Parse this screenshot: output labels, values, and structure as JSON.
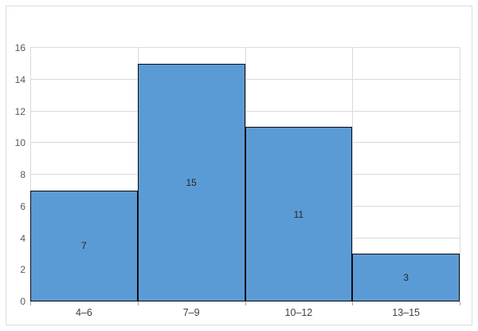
{
  "chart_data": {
    "type": "bar",
    "subtype": "histogram",
    "title": "",
    "xlabel": "",
    "ylabel": "",
    "categories": [
      "4–6",
      "7–9",
      "10–12",
      "13–15"
    ],
    "values": [
      7,
      15,
      11,
      3
    ],
    "data_labels": [
      "7",
      "15",
      "11",
      "3"
    ],
    "ylim": [
      0,
      16
    ],
    "ytick_step": 2,
    "ytick_labels": [
      "0",
      "2",
      "4",
      "6",
      "8",
      "10",
      "12",
      "14",
      "16"
    ],
    "grid": true,
    "gap_width_percent": 0,
    "legend": "none",
    "data_label_position": "inside-center",
    "colors": {
      "bar_fill": "#5b9bd5",
      "bar_border": "#0d0d0d",
      "gridline": "#d9d9d9",
      "axis_tick": "#a6a6a6",
      "y_tick_label": "#595959",
      "x_tick_label": "#404040",
      "data_label": "#262626",
      "frame_border": "#dcdcdc",
      "background": "#ffffff"
    }
  }
}
